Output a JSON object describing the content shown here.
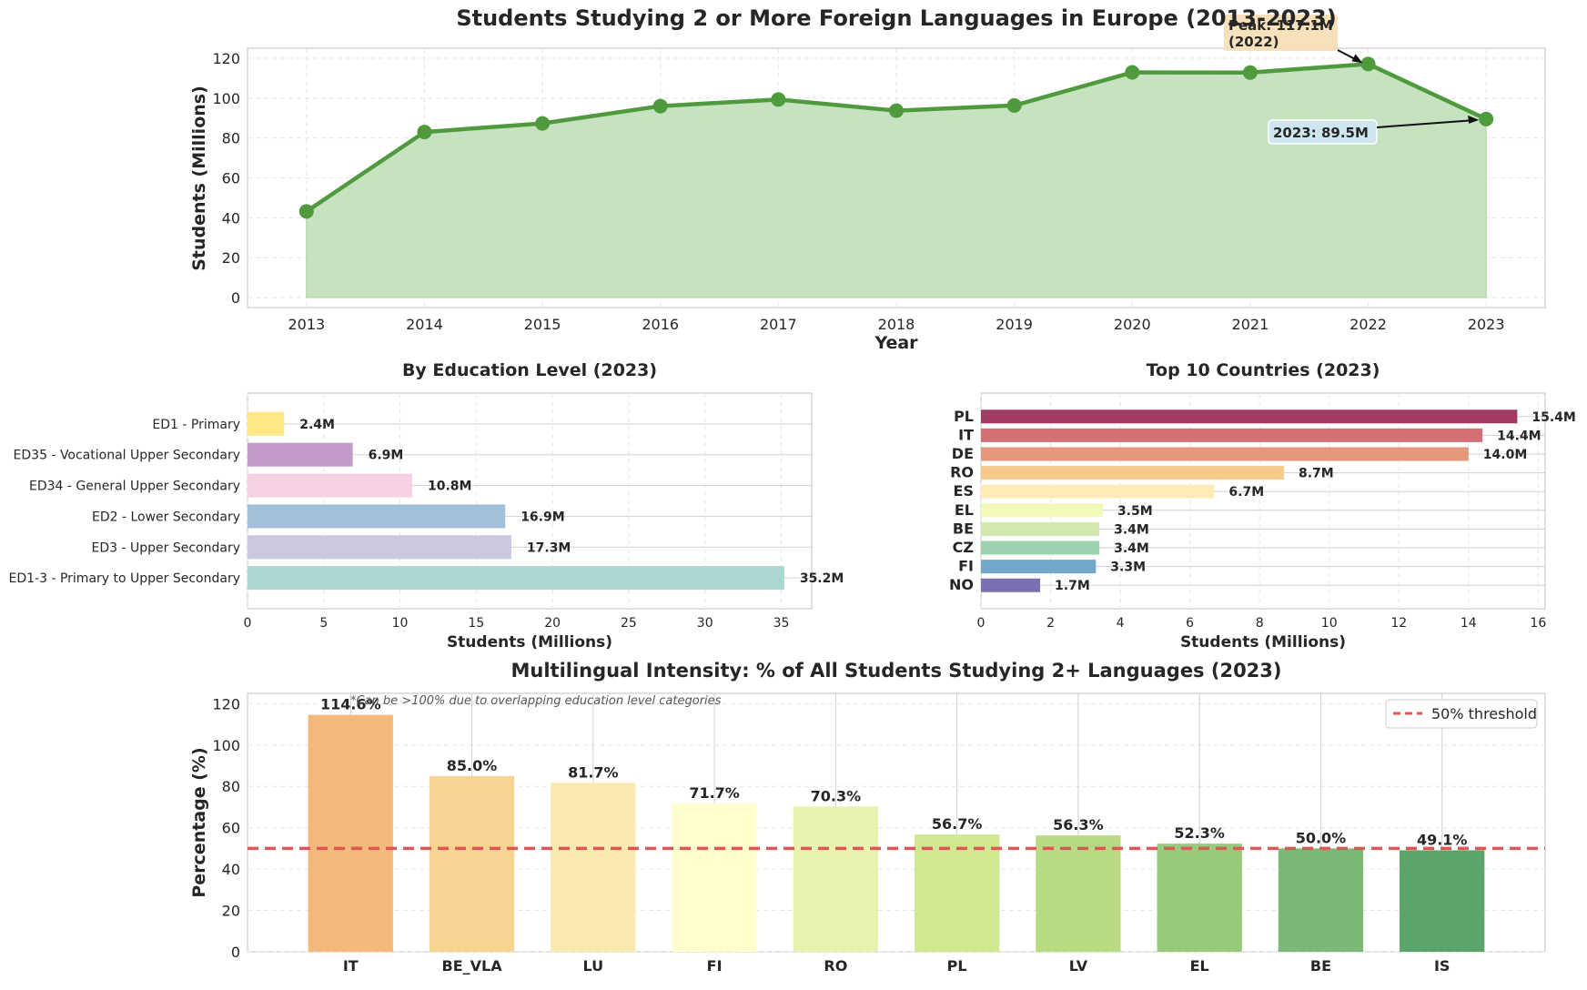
{
  "figure_title": "Students Studying 2 or More Foreign Languages in Europe (2013-2023)",
  "chart_data": [
    {
      "type": "area",
      "title": "Students Studying 2 or More Foreign Languages in Europe (2013-2023)",
      "xlabel": "Year",
      "ylabel": "Students (Millions)",
      "x": [
        2013,
        2014,
        2015,
        2016,
        2017,
        2018,
        2019,
        2020,
        2021,
        2022,
        2023
      ],
      "values": [
        43.2,
        83.0,
        87.3,
        96.0,
        99.3,
        93.7,
        96.3,
        112.9,
        112.8,
        117.1,
        89.5
      ],
      "xlim": [
        2012.5,
        2023.5
      ],
      "ylim": [
        -5,
        125
      ],
      "yticks": [
        0,
        20,
        40,
        60,
        80,
        100,
        120
      ],
      "grid": true,
      "colors": {
        "line": "#4e9a3c",
        "fill": "#c6e2c0"
      },
      "annotations": [
        {
          "text_lines": [
            "Peak: 117.1M",
            "(2022)"
          ],
          "x": 2022,
          "y": 117.1
        },
        {
          "text_lines": [
            "2023: 89.5M"
          ],
          "x": 2023,
          "y": 89.5
        }
      ]
    },
    {
      "type": "bar",
      "orientation": "horizontal",
      "title": "By Education Level (2023)",
      "xlabel": "Students (Millions)",
      "ylabel": "",
      "categories": [
        "ED1 - Primary",
        "ED35 - Vocational Upper Secondary",
        "ED34 - General Upper Secondary",
        "ED2 - Lower Secondary",
        "ED3 - Upper Secondary",
        "ED1-3 - Primary to Upper Secondary"
      ],
      "values": [
        2.4,
        6.9,
        10.8,
        16.9,
        17.3,
        35.2
      ],
      "value_labels": [
        "2.4M",
        "6.9M",
        "10.8M",
        "16.9M",
        "17.3M",
        "35.2M"
      ],
      "colors": [
        "#fee986",
        "#c39bc8",
        "#f6d1e4",
        "#a2bfd9",
        "#cbc7df",
        "#aad8d1"
      ],
      "xlim": [
        0,
        37
      ],
      "xticks": [
        0,
        5,
        10,
        15,
        20,
        25,
        30,
        35
      ],
      "grid": true
    },
    {
      "type": "bar",
      "orientation": "horizontal",
      "title": "Top 10 Countries (2023)",
      "xlabel": "Students (Millions)",
      "ylabel": "",
      "categories": [
        "PL",
        "IT",
        "DE",
        "RO",
        "ES",
        "EL",
        "BE",
        "CZ",
        "FI",
        "NO"
      ],
      "values": [
        15.4,
        14.4,
        14.0,
        8.7,
        6.7,
        3.5,
        3.4,
        3.4,
        3.3,
        1.7
      ],
      "value_labels": [
        "15.4M",
        "14.4M",
        "14.0M",
        "8.7M",
        "6.7M",
        "3.5M",
        "3.4M",
        "3.4M",
        "3.3M",
        "1.7M"
      ],
      "colors": [
        "#a23b64",
        "#d47075",
        "#e59779",
        "#f5cb8b",
        "#fdecb8",
        "#f4f9ba",
        "#d2e9ae",
        "#9dd2b1",
        "#72a7c9",
        "#7b70b1"
      ],
      "xlim": [
        0,
        16.2
      ],
      "xticks": [
        0,
        2,
        4,
        6,
        8,
        10,
        12,
        14,
        16
      ],
      "grid": true
    },
    {
      "type": "bar",
      "title": "Multilingual Intensity: % of All Students Studying 2+ Languages (2023)",
      "xlabel": "",
      "ylabel": "Percentage (%)",
      "categories": [
        "IT",
        "BE_VLA",
        "LU",
        "FI",
        "RO",
        "PL",
        "LV",
        "EL",
        "BE",
        "IS"
      ],
      "values": [
        114.6,
        85.0,
        81.7,
        71.7,
        70.3,
        56.7,
        56.3,
        52.3,
        50.0,
        49.1
      ],
      "value_labels": [
        "114.6%",
        "85.0%",
        "81.7%",
        "71.7%",
        "70.3%",
        "56.7%",
        "56.3%",
        "52.3%",
        "50.0%",
        "49.1%"
      ],
      "colors": [
        "#f3b97b",
        "#f8d391",
        "#f9eab0",
        "#fffecc",
        "#e8f3b0",
        "#d0e890",
        "#b8db82",
        "#98ca7c",
        "#7bb873",
        "#5ca56a"
      ],
      "ylim": [
        0,
        125
      ],
      "yticks": [
        0,
        20,
        40,
        60,
        80,
        100,
        120
      ],
      "reference_line": {
        "y": 50,
        "label": "50% threshold",
        "color": "#e05555"
      },
      "note": "*Can be >100% due to overlapping education level categories",
      "legend": {
        "entries": [
          "50% threshold"
        ],
        "placement": "top-right"
      },
      "grid": true
    }
  ]
}
